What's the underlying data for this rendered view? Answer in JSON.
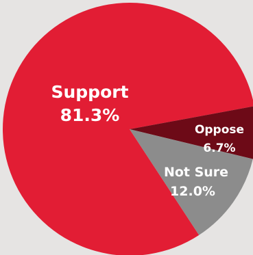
{
  "background": "#e6e4e3",
  "chart_data": {
    "type": "pie",
    "slices": [
      {
        "name": "Support",
        "value": 81.3,
        "label": "81.3%",
        "color": "#e21d34"
      },
      {
        "name": "Oppose",
        "value": 6.7,
        "label": "6.7%",
        "color": "#6d0a17"
      },
      {
        "name": "Not Sure",
        "value": 12.0,
        "label": "12.0%",
        "color": "#8c8c8c"
      }
    ]
  }
}
